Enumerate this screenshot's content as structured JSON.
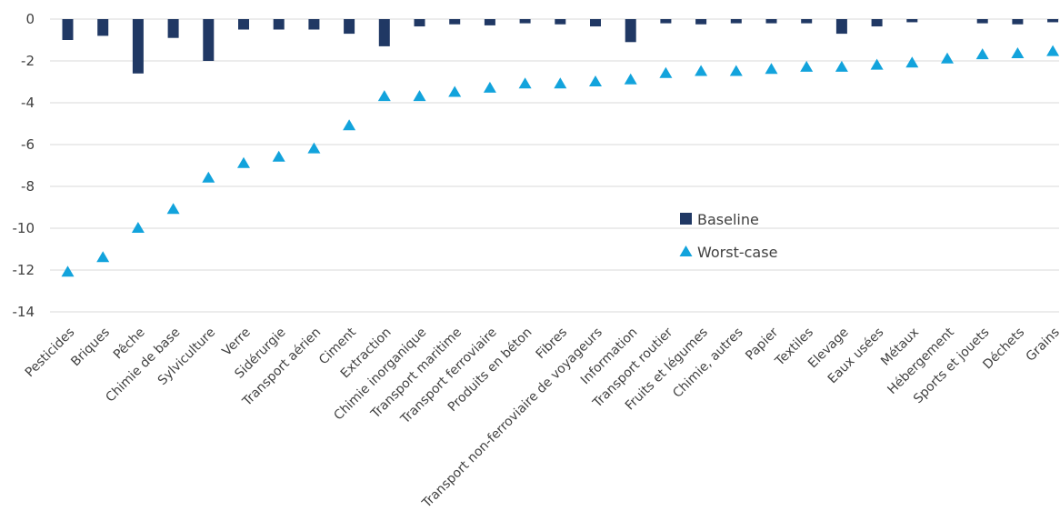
{
  "chart_data": {
    "type": "bar",
    "title": "",
    "xlabel": "",
    "ylabel": "",
    "ylim": [
      -14,
      0
    ],
    "yticks": [
      0,
      -2,
      -4,
      -6,
      -8,
      -10,
      -12,
      -14
    ],
    "grid": true,
    "legend_position": "center-right",
    "categories": [
      "Pesticides",
      "Briques",
      "Pêche",
      "Chimie de base",
      "Sylviculture",
      "Verre",
      "Sidérurgie",
      "Transport aérien",
      "Ciment",
      "Extraction",
      "Chimie inorganique",
      "Transport maritime",
      "Transport ferroviaire",
      "Produits en béton",
      "Fibres",
      "Transport non-ferroviaire de voyageurs",
      "Information",
      "Transport routier",
      "Fruits et légumes",
      "Chimie, autres",
      "Papier",
      "Textiles",
      "Elevage",
      "Eaux usées",
      "Métaux",
      "Hébergement",
      "Sports et jouets",
      "Déchets",
      "Grains"
    ],
    "series": [
      {
        "name": "Baseline",
        "kind": "bar",
        "color": "#203864",
        "values": [
          -1.0,
          -0.8,
          -2.6,
          -0.9,
          -2.0,
          -0.5,
          -0.5,
          -0.5,
          -0.7,
          -1.3,
          -0.35,
          -0.25,
          -0.3,
          -0.2,
          -0.25,
          -0.35,
          -1.1,
          -0.2,
          -0.25,
          -0.2,
          -0.2,
          -0.2,
          -0.7,
          -0.35,
          -0.15,
          0,
          -0.2,
          -0.25,
          -0.15
        ]
      },
      {
        "name": "Worst-case",
        "kind": "marker",
        "marker": "triangle",
        "color": "#12a3dc",
        "values": [
          -12.1,
          -11.4,
          -10.0,
          -9.1,
          -7.6,
          -6.9,
          -6.6,
          -6.2,
          -5.1,
          -3.7,
          -3.7,
          -3.5,
          -3.3,
          -3.1,
          -3.1,
          -3.0,
          -2.9,
          -2.6,
          -2.5,
          -2.5,
          -2.4,
          -2.3,
          -2.3,
          -2.2,
          -2.1,
          -1.9,
          -1.7,
          -1.65,
          -1.55
        ]
      }
    ]
  }
}
